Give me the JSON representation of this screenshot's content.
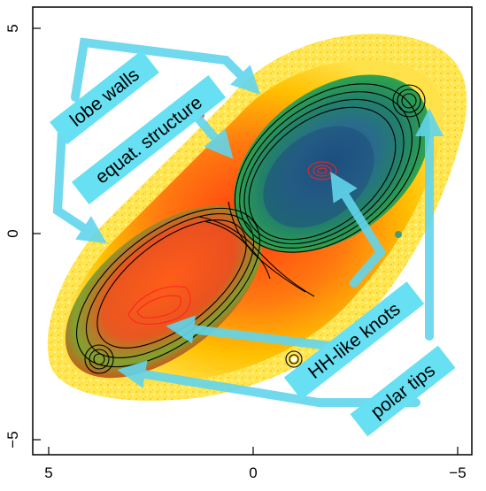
{
  "figure": {
    "labels": {
      "lobe_walls": "lobe walls",
      "equat_structure": "equat. structure",
      "hh_knots": "HH-like knots",
      "polar_tips": "polar tips"
    },
    "x_ticks": [
      "5",
      "0",
      "−5"
    ],
    "y_ticks": [
      "5",
      "0",
      "−5"
    ],
    "colors": {
      "label_box": "#66e0f2",
      "arrow": "#62d5ec",
      "contours_outer": "#000000",
      "contours_knots": "#ff2020",
      "halo": "#ffd200",
      "lobe_core": "#1e5a7a"
    }
  }
}
